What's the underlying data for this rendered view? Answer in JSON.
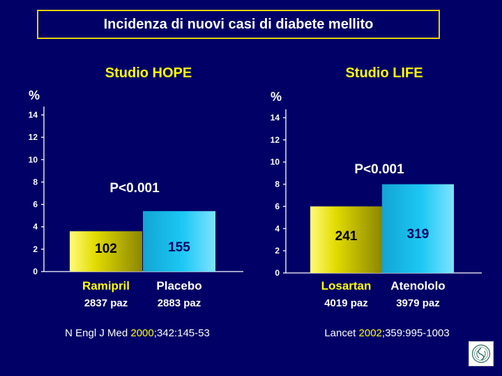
{
  "slide_title": "Incidenza di nuovi casi di diabete mellito",
  "colors": {
    "background": "#000066",
    "title_border": "#e6d200",
    "highlight_yellow": "#ffff00",
    "treatment_bar": "#d6d000",
    "comparator_bar": "#11b9ee",
    "treatment_label": "#ffff00",
    "comparator_label": "#ffffff"
  },
  "chart_data": [
    {
      "type": "bar",
      "title": "Studio  HOPE",
      "ylabel": "%",
      "ylim": [
        0,
        14
      ],
      "yticks": [
        0,
        2,
        4,
        6,
        8,
        10,
        12,
        14
      ],
      "categories": [
        "Ramipril",
        "Placebo"
      ],
      "values": [
        3.6,
        5.4
      ],
      "bar_labels": [
        "102",
        "155"
      ],
      "sample_sizes": [
        "2837 paz",
        "2883 paz"
      ],
      "annotation": "P<0.001",
      "reference": {
        "prefix": "N Engl J Med ",
        "year": "2000",
        "suffix": ";342:145-53"
      }
    },
    {
      "type": "bar",
      "title": "Studio  LIFE",
      "ylabel": "%",
      "ylim": [
        0,
        14
      ],
      "yticks": [
        0,
        2,
        4,
        6,
        8,
        10,
        12,
        14
      ],
      "categories": [
        "Losartan",
        "Atenololo"
      ],
      "values": [
        6.0,
        8.0
      ],
      "bar_labels": [
        "241",
        "319"
      ],
      "sample_sizes": [
        "4019 paz",
        "3979 paz"
      ],
      "annotation": "P<0.001",
      "reference": {
        "prefix": "Lancet ",
        "year": "2002",
        "suffix": ";359:995-1003"
      }
    }
  ],
  "logo_icon": "society-seal-icon"
}
